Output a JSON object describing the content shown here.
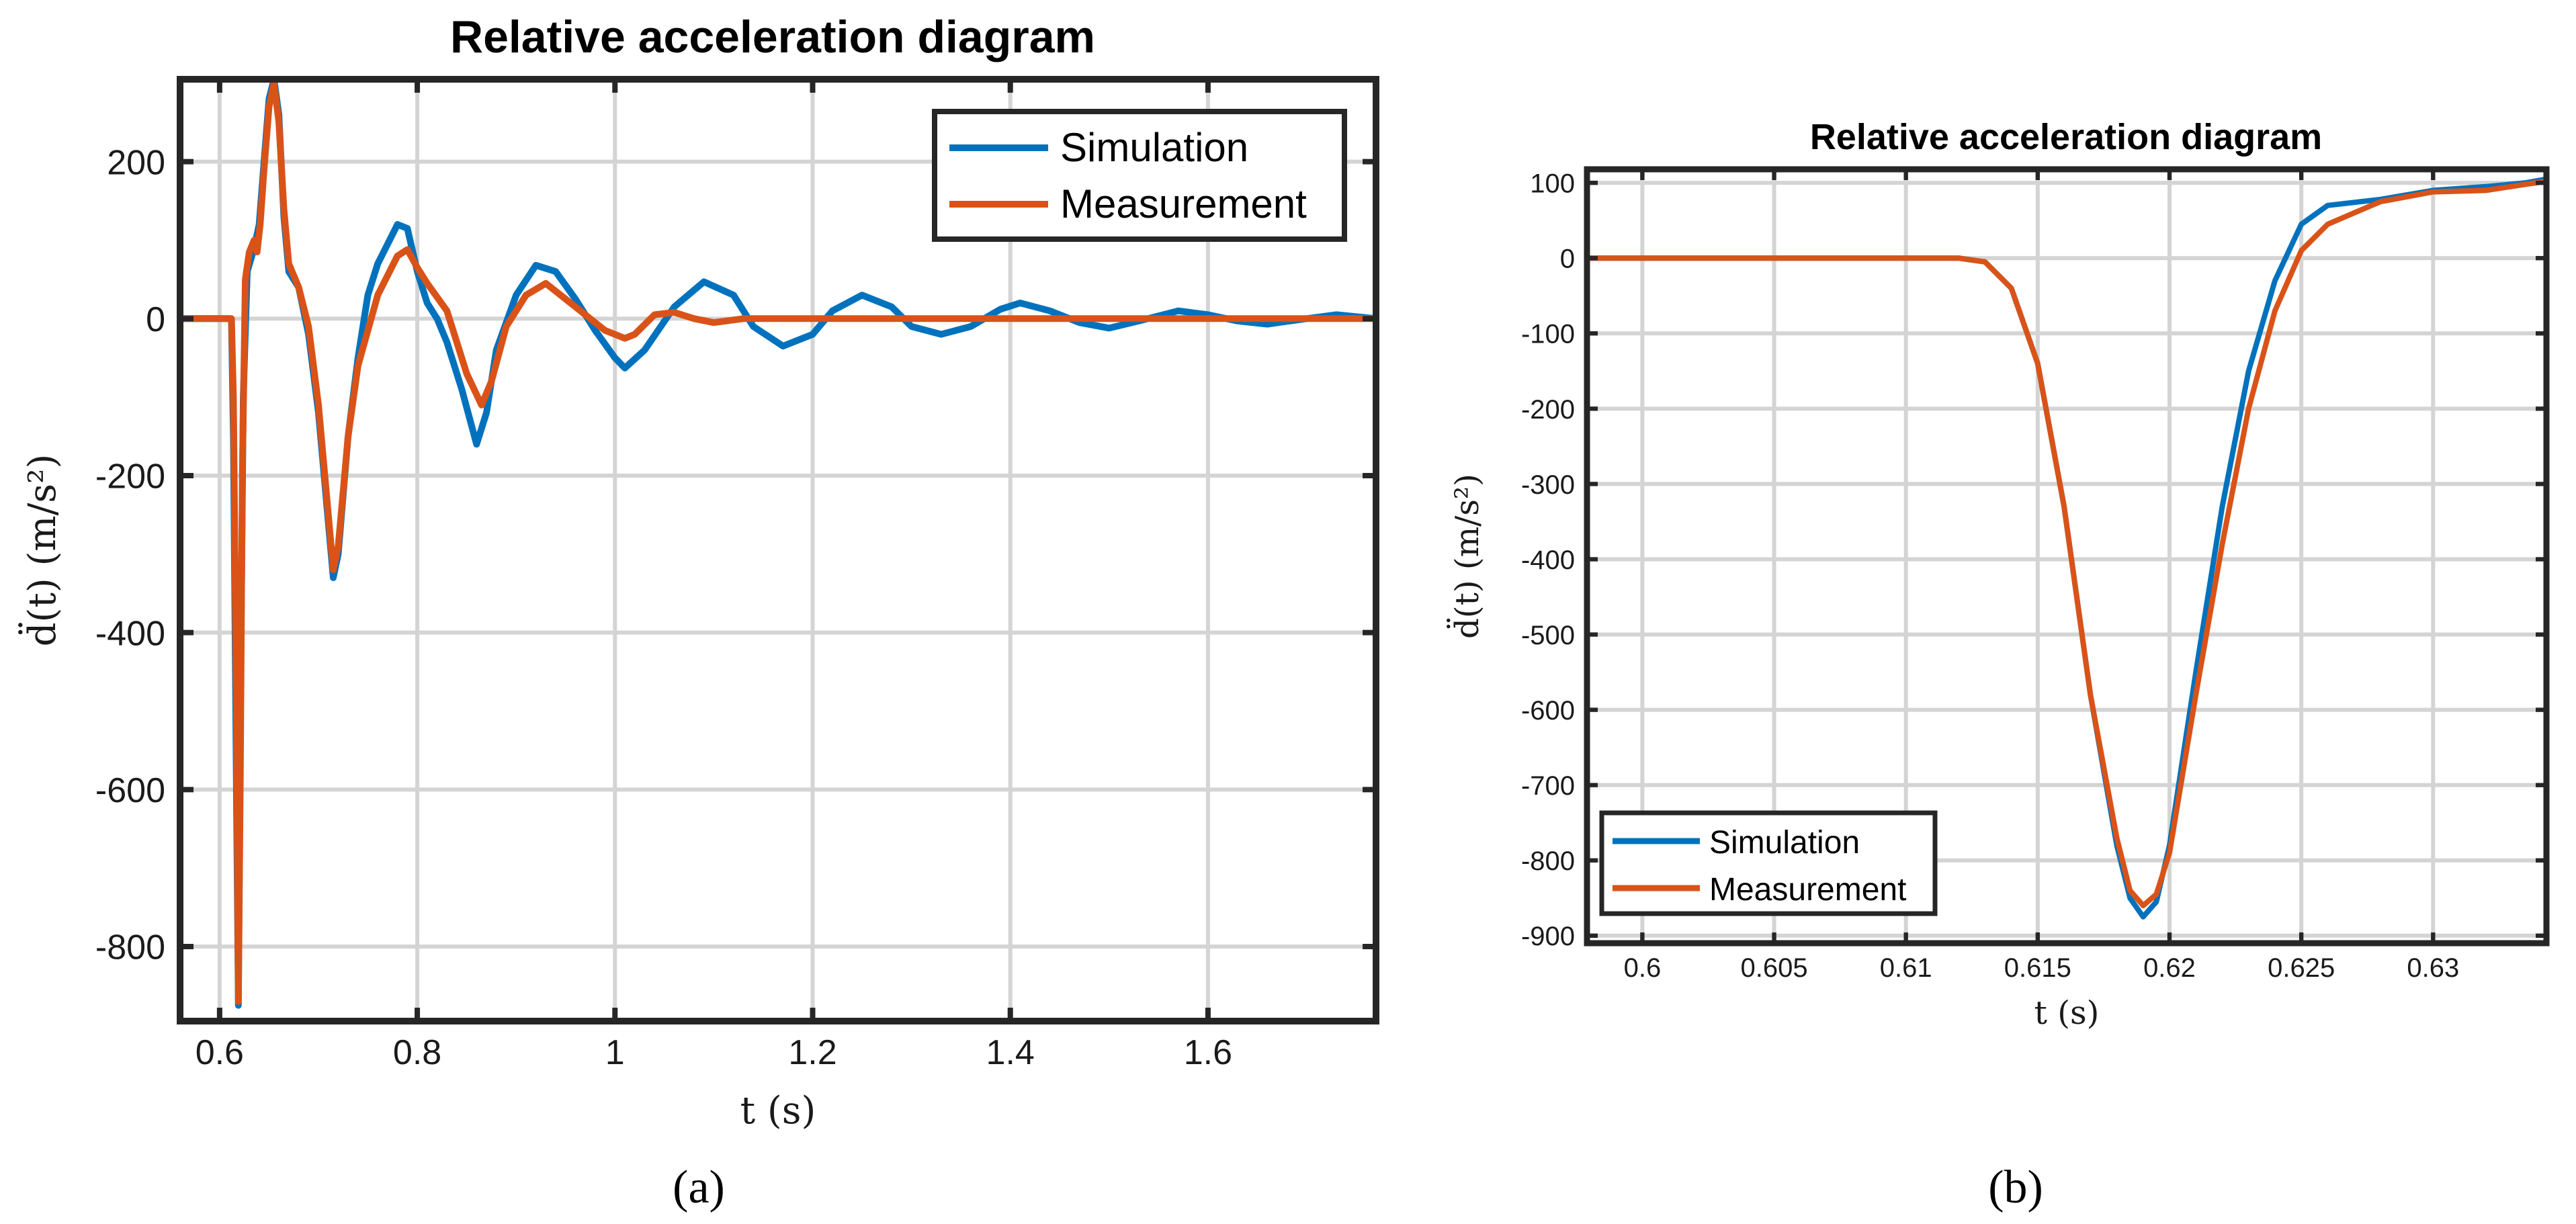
{
  "colors": {
    "simulation": "#0072BD",
    "measurement": "#D95319",
    "axes": "#262626",
    "grid": "#d4d4d4"
  },
  "chart_data": [
    {
      "type": "line",
      "title": "Relative acceleration diagram",
      "xlabel": "t (s)",
      "ylabel": "d̈(t) (m/s²)",
      "caption": "(a)",
      "xlim": [
        0.56,
        1.77
      ],
      "ylim": [
        -895,
        305
      ],
      "xticks": [
        0.6,
        0.8,
        1,
        1.2,
        1.4,
        1.6
      ],
      "xtick_labels": [
        "0.6",
        "0.8",
        "1",
        "1.2",
        "1.4",
        "1.6"
      ],
      "yticks": [
        -800,
        -600,
        -400,
        -200,
        0,
        200
      ],
      "ytick_labels": [
        "-800",
        "-600",
        "-400",
        "-200",
        "0",
        "200"
      ],
      "grid": true,
      "legend_position": "top-right",
      "series": [
        {
          "name": "Simulation",
          "points": [
            [
              0.56,
              0
            ],
            [
              0.61,
              0
            ],
            [
              0.612,
              -2
            ],
            [
              0.614,
              -150
            ],
            [
              0.617,
              -600
            ],
            [
              0.619,
              -875
            ],
            [
              0.621,
              -500
            ],
            [
              0.624,
              -100
            ],
            [
              0.628,
              60
            ],
            [
              0.635,
              90
            ],
            [
              0.64,
              120
            ],
            [
              0.645,
              200
            ],
            [
              0.65,
              280
            ],
            [
              0.655,
              305
            ],
            [
              0.66,
              260
            ],
            [
              0.665,
              130
            ],
            [
              0.67,
              60
            ],
            [
              0.68,
              40
            ],
            [
              0.69,
              -20
            ],
            [
              0.7,
              -120
            ],
            [
              0.71,
              -260
            ],
            [
              0.715,
              -330
            ],
            [
              0.72,
              -300
            ],
            [
              0.73,
              -150
            ],
            [
              0.74,
              -50
            ],
            [
              0.75,
              30
            ],
            [
              0.76,
              70
            ],
            [
              0.77,
              95
            ],
            [
              0.78,
              120
            ],
            [
              0.79,
              115
            ],
            [
              0.8,
              60
            ],
            [
              0.81,
              20
            ],
            [
              0.82,
              0
            ],
            [
              0.83,
              -30
            ],
            [
              0.845,
              -90
            ],
            [
              0.86,
              -160
            ],
            [
              0.87,
              -120
            ],
            [
              0.88,
              -40
            ],
            [
              0.9,
              30
            ],
            [
              0.92,
              68
            ],
            [
              0.94,
              60
            ],
            [
              0.96,
              25
            ],
            [
              0.98,
              -15
            ],
            [
              1.0,
              -50
            ],
            [
              1.01,
              -63
            ],
            [
              1.03,
              -40
            ],
            [
              1.06,
              15
            ],
            [
              1.09,
              47
            ],
            [
              1.12,
              30
            ],
            [
              1.14,
              -10
            ],
            [
              1.17,
              -35
            ],
            [
              1.2,
              -20
            ],
            [
              1.22,
              10
            ],
            [
              1.25,
              30
            ],
            [
              1.28,
              15
            ],
            [
              1.3,
              -10
            ],
            [
              1.33,
              -20
            ],
            [
              1.36,
              -10
            ],
            [
              1.39,
              12
            ],
            [
              1.41,
              20
            ],
            [
              1.44,
              10
            ],
            [
              1.47,
              -5
            ],
            [
              1.5,
              -12
            ],
            [
              1.53,
              -3
            ],
            [
              1.57,
              10
            ],
            [
              1.6,
              5
            ],
            [
              1.63,
              -3
            ],
            [
              1.66,
              -7
            ],
            [
              1.7,
              0
            ],
            [
              1.73,
              5
            ],
            [
              1.77,
              0
            ]
          ]
        },
        {
          "name": "Measurement",
          "points": [
            [
              0.56,
              0
            ],
            [
              0.612,
              0
            ],
            [
              0.614,
              -100
            ],
            [
              0.617,
              -500
            ],
            [
              0.619,
              -870
            ],
            [
              0.621,
              -580
            ],
            [
              0.623,
              -200
            ],
            [
              0.626,
              50
            ],
            [
              0.63,
              85
            ],
            [
              0.635,
              100
            ],
            [
              0.638,
              85
            ],
            [
              0.641,
              120
            ],
            [
              0.645,
              190
            ],
            [
              0.65,
              270
            ],
            [
              0.655,
              300
            ],
            [
              0.66,
              250
            ],
            [
              0.665,
              140
            ],
            [
              0.67,
              70
            ],
            [
              0.68,
              40
            ],
            [
              0.69,
              -10
            ],
            [
              0.7,
              -110
            ],
            [
              0.71,
              -250
            ],
            [
              0.715,
              -320
            ],
            [
              0.72,
              -290
            ],
            [
              0.73,
              -150
            ],
            [
              0.74,
              -60
            ],
            [
              0.76,
              30
            ],
            [
              0.78,
              80
            ],
            [
              0.79,
              88
            ],
            [
              0.8,
              65
            ],
            [
              0.81,
              45
            ],
            [
              0.83,
              10
            ],
            [
              0.85,
              -70
            ],
            [
              0.865,
              -110
            ],
            [
              0.875,
              -80
            ],
            [
              0.89,
              -10
            ],
            [
              0.91,
              30
            ],
            [
              0.93,
              45
            ],
            [
              0.95,
              25
            ],
            [
              0.97,
              5
            ],
            [
              0.99,
              -15
            ],
            [
              1.01,
              -25
            ],
            [
              1.02,
              -20
            ],
            [
              1.04,
              5
            ],
            [
              1.06,
              8
            ],
            [
              1.08,
              0
            ],
            [
              1.1,
              -5
            ],
            [
              1.13,
              0
            ],
            [
              1.77,
              0
            ]
          ]
        }
      ]
    },
    {
      "type": "line",
      "title": "Relative acceleration diagram",
      "xlabel": "t (s)",
      "ylabel": "d̈(t) (m/s²)",
      "caption": "(b)",
      "xlim": [
        0.5979,
        0.6343
      ],
      "ylim": [
        -910,
        118
      ],
      "xticks": [
        0.6,
        0.605,
        0.61,
        0.615,
        0.62,
        0.625,
        0.63
      ],
      "xtick_labels": [
        "0.6",
        "0.605",
        "0.61",
        "0.615",
        "0.62",
        "0.625",
        "0.63"
      ],
      "yticks": [
        -900,
        -800,
        -700,
        -600,
        -500,
        -400,
        -300,
        -200,
        -100,
        0,
        100
      ],
      "ytick_labels": [
        "-900",
        "-800",
        "-700",
        "-600",
        "-500",
        "-400",
        "-300",
        "-200",
        "-100",
        "0",
        "100"
      ],
      "grid": true,
      "legend_position": "bottom-left",
      "series": [
        {
          "name": "Simulation",
          "points": [
            [
              0.5979,
              0
            ],
            [
              0.605,
              0
            ],
            [
              0.612,
              0
            ],
            [
              0.613,
              -5
            ],
            [
              0.614,
              -40
            ],
            [
              0.615,
              -140
            ],
            [
              0.616,
              -330
            ],
            [
              0.617,
              -580
            ],
            [
              0.618,
              -780
            ],
            [
              0.6185,
              -850
            ],
            [
              0.619,
              -875
            ],
            [
              0.6195,
              -855
            ],
            [
              0.62,
              -780
            ],
            [
              0.621,
              -550
            ],
            [
              0.622,
              -330
            ],
            [
              0.623,
              -150
            ],
            [
              0.624,
              -30
            ],
            [
              0.625,
              45
            ],
            [
              0.626,
              70
            ],
            [
              0.628,
              78
            ],
            [
              0.63,
              90
            ],
            [
              0.632,
              95
            ],
            [
              0.6335,
              100
            ],
            [
              0.6343,
              105
            ]
          ]
        },
        {
          "name": "Measurement",
          "points": [
            [
              0.5979,
              0
            ],
            [
              0.605,
              0
            ],
            [
              0.612,
              0
            ],
            [
              0.613,
              -5
            ],
            [
              0.614,
              -40
            ],
            [
              0.615,
              -140
            ],
            [
              0.616,
              -330
            ],
            [
              0.617,
              -580
            ],
            [
              0.618,
              -770
            ],
            [
              0.6185,
              -840
            ],
            [
              0.619,
              -860
            ],
            [
              0.6195,
              -845
            ],
            [
              0.62,
              -790
            ],
            [
              0.621,
              -580
            ],
            [
              0.622,
              -380
            ],
            [
              0.623,
              -200
            ],
            [
              0.624,
              -70
            ],
            [
              0.625,
              10
            ],
            [
              0.626,
              45
            ],
            [
              0.628,
              75
            ],
            [
              0.63,
              88
            ],
            [
              0.632,
              90
            ],
            [
              0.6335,
              98
            ],
            [
              0.6343,
              102
            ]
          ]
        }
      ]
    }
  ]
}
